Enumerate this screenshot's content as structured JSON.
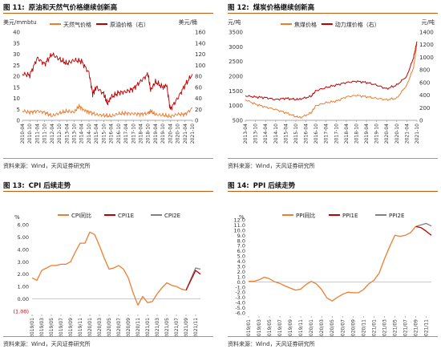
{
  "panels": [
    {
      "figure_no": "图 11:",
      "title": "原油和天然气价格继续创新高",
      "source": "资料来源：Wind，天风证券研究所"
    },
    {
      "figure_no": "图 12:",
      "title": "煤炭价格继续创新高",
      "source": "资料来源：Wind，天风证券研究所"
    },
    {
      "figure_no": "图 13:",
      "title": "CPI 后续走势",
      "source": "资料来源：Wind，天风证券研究所"
    },
    {
      "figure_no": "图 14:",
      "title": "PPI 后续走势",
      "source": "资料来源：Wind，天风证券研究所"
    }
  ],
  "colors": {
    "orange": "#ed7d31",
    "darkred": "#c00000",
    "gray": "#808080"
  },
  "chart_data": [
    {
      "type": "line",
      "left_unit": "美元/mmbtu",
      "right_unit": "美元/桶",
      "legend_position": "top",
      "left_ylim": [
        0,
        40
      ],
      "left_ticks": [
        "0",
        "5",
        "10",
        "15",
        "20",
        "25",
        "30",
        "35",
        "40"
      ],
      "right_ylim": [
        0,
        160
      ],
      "right_ticks": [
        "0",
        "20",
        "40",
        "60",
        "80",
        "100",
        "120",
        "140",
        "160"
      ],
      "xlim": [
        "2010-04",
        "2021-10"
      ],
      "x_ticks": [
        "2010-04",
        "2010-10",
        "2011-04",
        "2011-10",
        "2012-04",
        "2012-10",
        "2013-04",
        "2013-10",
        "2014-04",
        "2014-10",
        "2015-04",
        "2015-10",
        "2016-04",
        "2016-10",
        "2017-04",
        "2017-10",
        "2018-04",
        "2018-10",
        "2019-04",
        "2019-10",
        "2020-04",
        "2020-10",
        "2021-04",
        "2021-10"
      ],
      "series": [
        {
          "name": "天然气价格",
          "axis": "left",
          "color": "#ed7d31",
          "x": [
            "2010-04",
            "2010-10",
            "2011-04",
            "2011-10",
            "2012-04",
            "2012-10",
            "2013-04",
            "2013-10",
            "2014-02",
            "2014-06",
            "2014-10",
            "2015-04",
            "2015-10",
            "2016-04",
            "2016-10",
            "2017-04",
            "2017-10",
            "2018-04",
            "2018-10",
            "2018-12",
            "2019-04",
            "2019-10",
            "2020-04",
            "2020-10",
            "2021-04",
            "2021-10"
          ],
          "values": [
            4.3,
            3.6,
            4.2,
            3.6,
            2.0,
            3.3,
            4.2,
            3.7,
            6.5,
            4.6,
            3.8,
            2.6,
            2.3,
            1.9,
            3.0,
            3.2,
            3.0,
            2.8,
            3.2,
            4.3,
            2.6,
            2.4,
            1.8,
            2.8,
            2.7,
            5.5
          ]
        },
        {
          "name": "原油价格（右）",
          "axis": "right",
          "color": "#c00000",
          "x": [
            "2010-04",
            "2010-10",
            "2011-04",
            "2011-10",
            "2012-04",
            "2012-10",
            "2013-04",
            "2013-10",
            "2014-04",
            "2014-10",
            "2015-01",
            "2015-04",
            "2015-10",
            "2016-01",
            "2016-04",
            "2016-10",
            "2017-04",
            "2017-10",
            "2018-04",
            "2018-10",
            "2018-12",
            "2019-04",
            "2019-10",
            "2020-01",
            "2020-04",
            "2020-10",
            "2021-04",
            "2021-10"
          ],
          "values": [
            84,
            82,
            113,
            102,
            120,
            111,
            103,
            109,
            107,
            86,
            48,
            60,
            48,
            30,
            42,
            50,
            52,
            57,
            71,
            84,
            54,
            70,
            60,
            64,
            20,
            40,
            64,
            84
          ]
        }
      ]
    },
    {
      "type": "line",
      "left_unit": "元/吨",
      "right_unit": "元/吨",
      "legend_position": "top",
      "left_ylim": [
        500,
        3500
      ],
      "left_ticks": [
        "500",
        "1000",
        "1500",
        "2000",
        "2500",
        "3000",
        "3500"
      ],
      "right_ylim": [
        0,
        1400
      ],
      "right_ticks": [
        "0",
        "200",
        "400",
        "600",
        "800",
        "1000",
        "1200",
        "1400"
      ],
      "xlim": [
        "2013-04",
        "2021-10"
      ],
      "x_ticks": [
        "2013-04",
        "2013-10",
        "2014-04",
        "2014-10",
        "2015-04",
        "2015-10",
        "2016-04",
        "2016-10",
        "2017-04",
        "2017-10",
        "2018-04",
        "2018-10",
        "2019-04",
        "2019-10",
        "2020-04",
        "2020-10",
        "2021-04",
        "2021-10"
      ],
      "series": [
        {
          "name": "焦煤价格",
          "axis": "left",
          "color": "#ed7d31",
          "x": [
            "2013-04",
            "2013-10",
            "2014-04",
            "2014-10",
            "2015-04",
            "2015-10",
            "2016-01",
            "2016-07",
            "2016-10",
            "2017-04",
            "2017-10",
            "2018-04",
            "2018-10",
            "2019-04",
            "2019-10",
            "2020-04",
            "2020-10",
            "2021-04",
            "2021-08",
            "2021-10"
          ],
          "values": [
            1200,
            1050,
            950,
            870,
            760,
            630,
            600,
            750,
            1000,
            1100,
            1150,
            1300,
            1350,
            1300,
            1250,
            1200,
            1250,
            1700,
            2300,
            3100
          ]
        },
        {
          "name": "动力煤价格（右）",
          "axis": "right",
          "color": "#c00000",
          "x": [
            "2013-04",
            "2013-10",
            "2014-04",
            "2014-10",
            "2015-04",
            "2015-10",
            "2016-01",
            "2016-07",
            "2016-10",
            "2017-04",
            "2017-10",
            "2018-04",
            "2018-10",
            "2019-04",
            "2019-10",
            "2020-04",
            "2020-10",
            "2021-04",
            "2021-08",
            "2021-10"
          ],
          "values": [
            390,
            370,
            360,
            330,
            350,
            330,
            340,
            380,
            470,
            520,
            560,
            600,
            620,
            600,
            560,
            500,
            560,
            700,
            1000,
            1250
          ]
        }
      ]
    },
    {
      "type": "line",
      "y_unit": "%",
      "legend_position": "top",
      "ylim": [
        -1,
        6
      ],
      "y_ticks": [
        "6.00",
        "5.00",
        "4.00",
        "3.00",
        "2.00",
        "1.00",
        "0.00",
        "(1.00)"
      ],
      "x_ticks": [
        "2019/01",
        "2019/03",
        "2019/05",
        "2019/07",
        "2019/09",
        "2019/11",
        "2020/01",
        "2020/03",
        "2020/05",
        "2020/07",
        "2020/09",
        "2020/11",
        "2021/01",
        "2021/03",
        "2021/05",
        "2021/07",
        "2021/09",
        "2021/11"
      ],
      "series": [
        {
          "name": "CPI同比",
          "color": "#ed7d31",
          "x": [
            "2019/01",
            "2019/02",
            "2019/03",
            "2019/04",
            "2019/05",
            "2019/06",
            "2019/07",
            "2019/08",
            "2019/09",
            "2019/10",
            "2019/11",
            "2019/12",
            "2020/01",
            "2020/02",
            "2020/03",
            "2020/04",
            "2020/05",
            "2020/06",
            "2020/07",
            "2020/08",
            "2020/09",
            "2020/10",
            "2020/11",
            "2020/12",
            "2021/01",
            "2021/02",
            "2021/03",
            "2021/04",
            "2021/05",
            "2021/06",
            "2021/07",
            "2021/08",
            "2021/09"
          ],
          "values": [
            1.7,
            1.5,
            2.3,
            2.5,
            2.7,
            2.7,
            2.8,
            2.8,
            3.0,
            3.8,
            4.5,
            4.5,
            5.4,
            5.2,
            4.3,
            3.3,
            2.4,
            2.5,
            2.7,
            2.4,
            1.7,
            0.5,
            -0.5,
            0.2,
            -0.3,
            -0.2,
            0.4,
            0.9,
            1.3,
            1.1,
            1.0,
            0.8,
            0.7
          ]
        },
        {
          "name": "CPI1E",
          "color": "#c00000",
          "x": [
            "2021/09",
            "2021/10",
            "2021/11",
            "2021/12"
          ],
          "values": [
            0.7,
            1.5,
            2.3,
            2.0
          ]
        },
        {
          "name": "CPI2E",
          "color": "#808080",
          "x": [
            "2021/09",
            "2021/10",
            "2021/11",
            "2021/12"
          ],
          "values": [
            0.7,
            1.6,
            2.5,
            2.4
          ]
        }
      ]
    },
    {
      "type": "line",
      "y_unit": "%",
      "legend_position": "top",
      "ylim": [
        -6,
        12
      ],
      "y_ticks": [
        "12.0",
        "11.0",
        "10.0",
        "9.0",
        "8.0",
        "7.0",
        "6.0",
        "5.0",
        "4.0",
        "3.0",
        "2.0",
        "1.0",
        "0.0",
        "-1.0",
        "-2.0",
        "-3.0",
        "-4.0",
        "-5.0",
        "-6.0"
      ],
      "x_ticks": [
        "2019/01",
        "2019/03",
        "2019/05",
        "2019/07",
        "2019/09",
        "2019/11",
        "2020/01",
        "2020/03",
        "2020/05",
        "2020/07",
        "2020/09",
        "2020/11",
        "2021/01",
        "2021/03",
        "2021/05",
        "2021/07",
        "2021/09",
        "2021/11"
      ],
      "series": [
        {
          "name": "PPI同比",
          "color": "#ed7d31",
          "x": [
            "2019/01",
            "2019/02",
            "2019/03",
            "2019/04",
            "2019/05",
            "2019/06",
            "2019/07",
            "2019/08",
            "2019/09",
            "2019/10",
            "2019/11",
            "2019/12",
            "2020/01",
            "2020/02",
            "2020/03",
            "2020/04",
            "2020/05",
            "2020/06",
            "2020/07",
            "2020/08",
            "2020/09",
            "2020/10",
            "2020/11",
            "2020/12",
            "2021/01",
            "2021/02",
            "2021/03",
            "2021/04",
            "2021/05",
            "2021/06",
            "2021/07",
            "2021/08",
            "2021/09"
          ],
          "values": [
            0.1,
            0.1,
            0.4,
            0.9,
            0.6,
            0.0,
            -0.3,
            -0.8,
            -1.2,
            -1.6,
            -1.4,
            -0.5,
            0.1,
            -0.4,
            -1.5,
            -3.1,
            -3.7,
            -3.0,
            -2.4,
            -2.0,
            -2.1,
            -2.1,
            -1.5,
            -0.4,
            0.3,
            1.7,
            4.4,
            6.8,
            9.0,
            8.8,
            9.0,
            9.5,
            10.7
          ]
        },
        {
          "name": "PPI1E",
          "color": "#c00000",
          "x": [
            "2021/09",
            "2021/10",
            "2021/11",
            "2021/12"
          ],
          "values": [
            10.7,
            10.5,
            9.8,
            9.0
          ]
        },
        {
          "name": "PPI2E",
          "color": "#808080",
          "x": [
            "2021/09",
            "2021/10",
            "2021/11",
            "2021/12"
          ],
          "values": [
            10.7,
            11.0,
            11.3,
            10.8
          ]
        }
      ]
    }
  ]
}
